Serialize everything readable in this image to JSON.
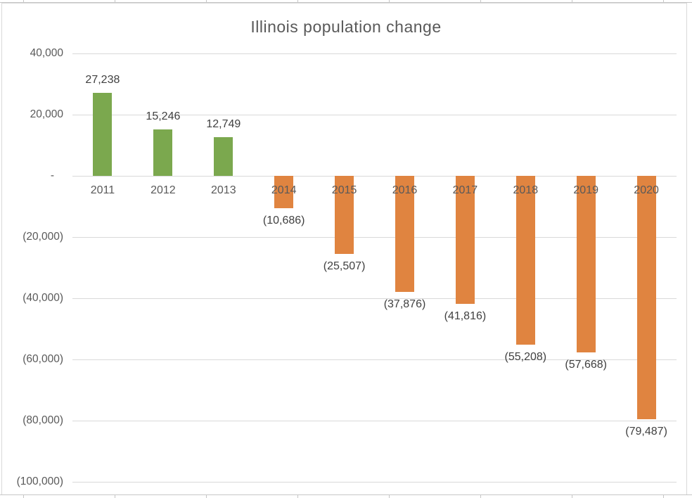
{
  "chart_data": {
    "type": "bar",
    "title": "Illinois population change",
    "categories": [
      "2011",
      "2012",
      "2013",
      "2014",
      "2015",
      "2016",
      "2017",
      "2018",
      "2019",
      "2020"
    ],
    "values": [
      27238,
      15246,
      12749,
      -10686,
      -25507,
      -37876,
      -41816,
      -55208,
      -57668,
      -79487
    ],
    "data_labels": [
      "27,238",
      "15,246",
      "12,749",
      "(10,686)",
      "(25,507)",
      "(37,876)",
      "(41,816)",
      "(55,208)",
      "(57,668)",
      "(79,487)"
    ],
    "xlabel": "",
    "ylabel": "",
    "ylim": [
      -100000,
      40000
    ],
    "grid": true,
    "legend": "none",
    "y_ticks": [
      {
        "value": 40000,
        "label": "40,000"
      },
      {
        "value": 20000,
        "label": "20,000"
      },
      {
        "value": 0,
        "label": "-   "
      },
      {
        "value": -20000,
        "label": "(20,000)"
      },
      {
        "value": -40000,
        "label": "(40,000)"
      },
      {
        "value": -60000,
        "label": "(60,000)"
      },
      {
        "value": -80000,
        "label": "(80,000)"
      },
      {
        "value": -100000,
        "label": "(100,000)"
      }
    ],
    "colors": {
      "positive_bar": "#7BA84E",
      "negative_bar": "#E08440",
      "gridline": "#D9D9D9",
      "chart_border": "#D9D9D9",
      "title_text": "#595959",
      "axis_text": "#595959",
      "data_label_text": "#404040",
      "sheet_grid": "#C6C6C6",
      "background": "#FFFFFF"
    }
  }
}
